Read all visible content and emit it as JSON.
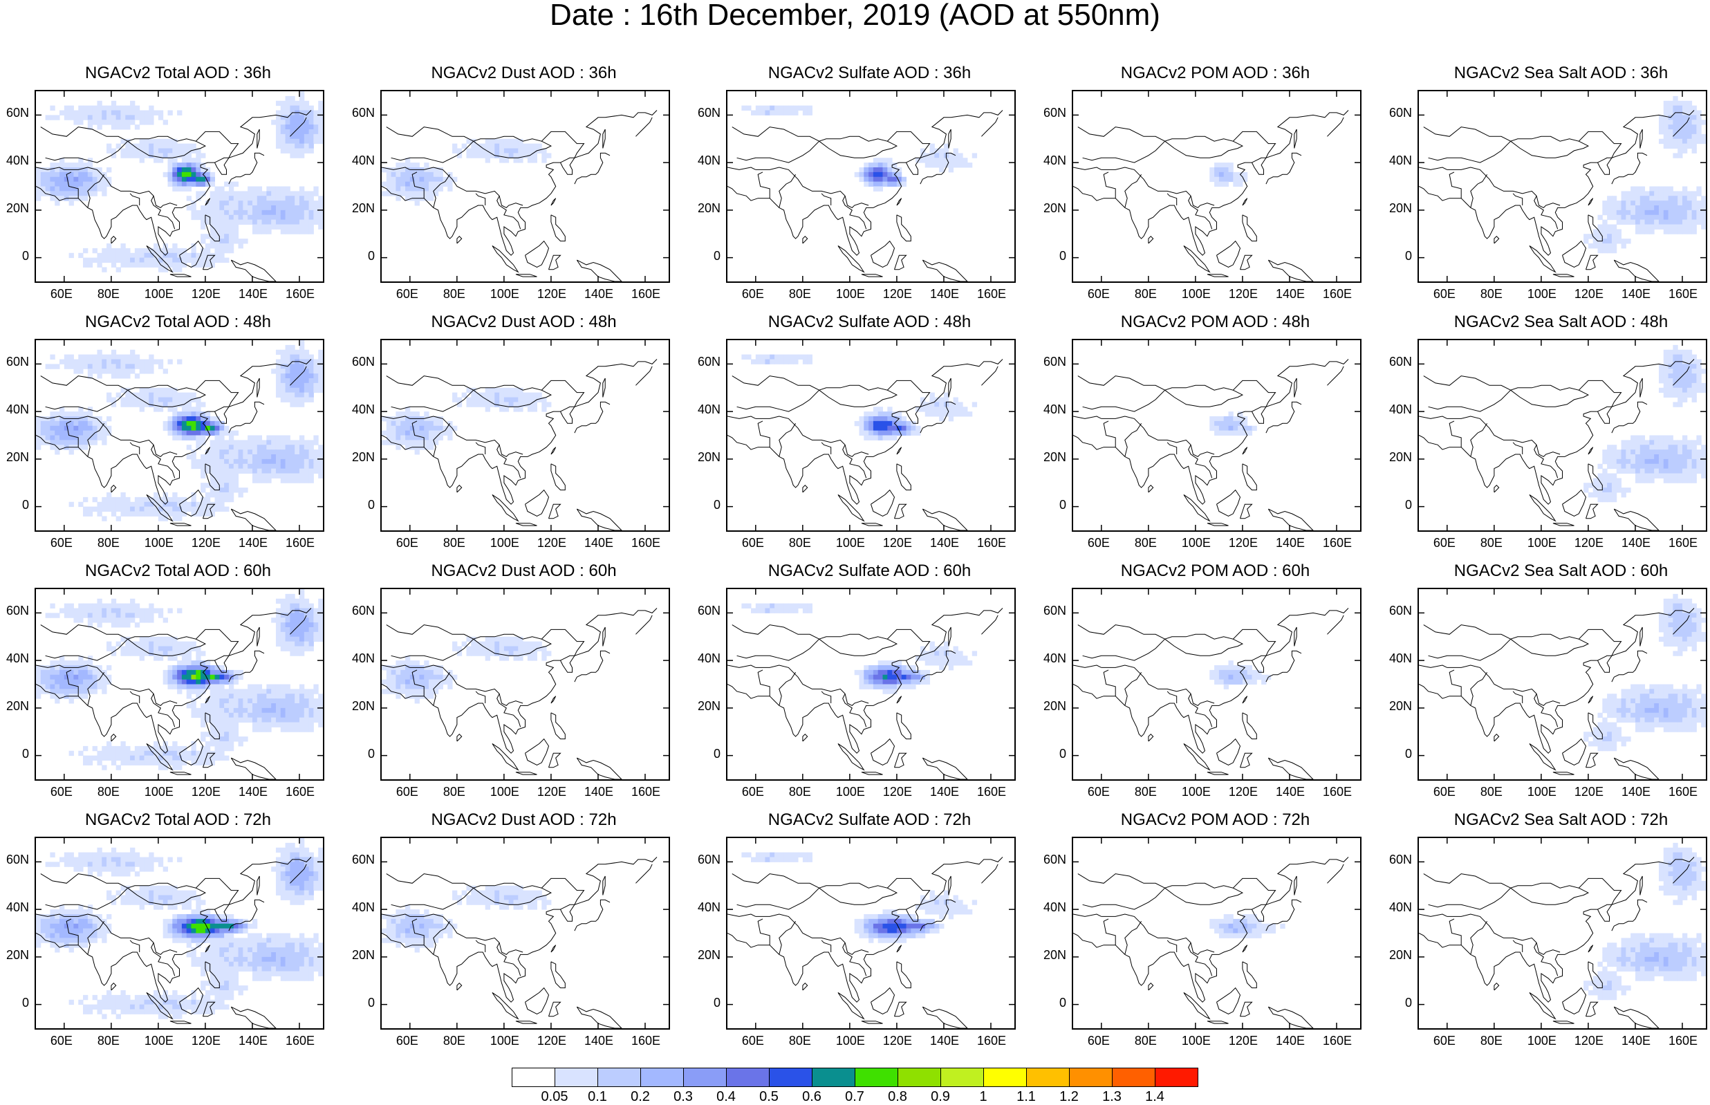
{
  "title": "Date : 16th December, 2019 (AOD at 550nm)",
  "panels": [
    {
      "title": "NGACv2 Total AOD : 36h",
      "species": "total",
      "hour": 36
    },
    {
      "title": "NGACv2 Dust AOD : 36h",
      "species": "dust",
      "hour": 36
    },
    {
      "title": "NGACv2 Sulfate AOD : 36h",
      "species": "sulfate",
      "hour": 36
    },
    {
      "title": "NGACv2 POM AOD : 36h",
      "species": "pom",
      "hour": 36
    },
    {
      "title": "NGACv2 Sea Salt AOD : 36h",
      "species": "seasalt",
      "hour": 36
    },
    {
      "title": "NGACv2 Total AOD : 48h",
      "species": "total",
      "hour": 48
    },
    {
      "title": "NGACv2 Dust AOD : 48h",
      "species": "dust",
      "hour": 48
    },
    {
      "title": "NGACv2 Sulfate AOD : 48h",
      "species": "sulfate",
      "hour": 48
    },
    {
      "title": "NGACv2 POM AOD : 48h",
      "species": "pom",
      "hour": 48
    },
    {
      "title": "NGACv2 Sea Salt AOD : 48h",
      "species": "seasalt",
      "hour": 48
    },
    {
      "title": "NGACv2 Total AOD : 60h",
      "species": "total",
      "hour": 60
    },
    {
      "title": "NGACv2 Dust AOD : 60h",
      "species": "dust",
      "hour": 60
    },
    {
      "title": "NGACv2 Sulfate AOD : 60h",
      "species": "sulfate",
      "hour": 60
    },
    {
      "title": "NGACv2 POM AOD : 60h",
      "species": "pom",
      "hour": 60
    },
    {
      "title": "NGACv2 Sea Salt AOD : 60h",
      "species": "seasalt",
      "hour": 60
    },
    {
      "title": "NGACv2 Total AOD : 72h",
      "species": "total",
      "hour": 72
    },
    {
      "title": "NGACv2 Dust AOD : 72h",
      "species": "dust",
      "hour": 72
    },
    {
      "title": "NGACv2 Sulfate AOD : 72h",
      "species": "sulfate",
      "hour": 72
    },
    {
      "title": "NGACv2 POM AOD : 72h",
      "species": "pom",
      "hour": 72
    },
    {
      "title": "NGACv2 Sea Salt  AOD : 72h",
      "species": "seasalt",
      "hour": 72
    }
  ],
  "map_extent": {
    "lon_min": 48,
    "lon_max": 170,
    "lat_min": -10,
    "lat_max": 70
  },
  "x_ticks": [
    "60E",
    "80E",
    "100E",
    "120E",
    "140E",
    "160E"
  ],
  "x_tick_values": [
    60,
    80,
    100,
    120,
    140,
    160
  ],
  "y_ticks": [
    "60N",
    "40N",
    "20N",
    "0"
  ],
  "y_tick_values": [
    60,
    40,
    20,
    0
  ],
  "colorbar": {
    "levels": [
      "0.05",
      "0.1",
      "0.2",
      "0.3",
      "0.4",
      "0.5",
      "0.6",
      "0.7",
      "0.8",
      "0.9",
      "1",
      "1.1",
      "1.2",
      "1.3",
      "1.4"
    ],
    "colors": [
      "#ffffff",
      "#d9e3ff",
      "#bccdff",
      "#a3b8ff",
      "#8a9df7",
      "#6a74e8",
      "#2a52e8",
      "#0a8f8f",
      "#3fe000",
      "#8fe000",
      "#c0f020",
      "#ffff00",
      "#ffc000",
      "#ff9000",
      "#ff6000",
      "#ff1a00"
    ]
  }
}
